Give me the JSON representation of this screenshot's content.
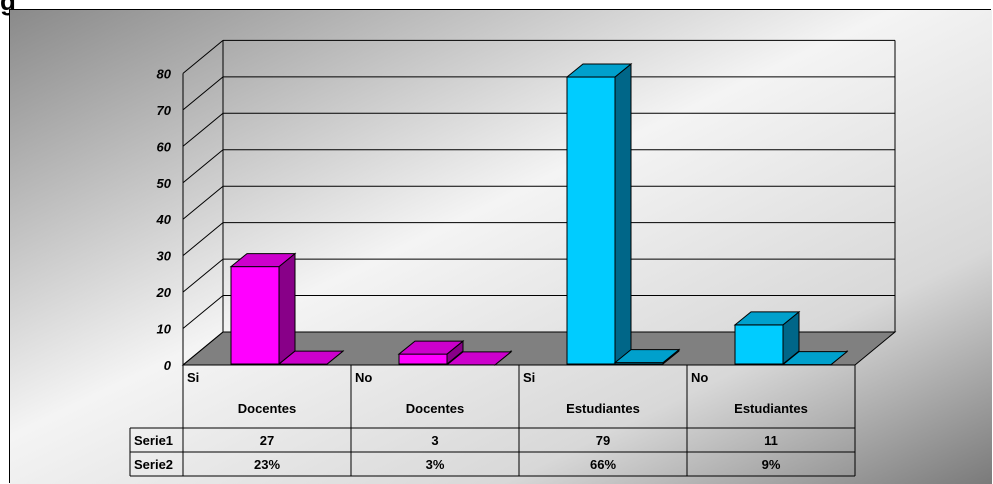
{
  "title_fragment": "g",
  "chart_data": {
    "type": "bar",
    "style": "3d-clustered-column-with-data-table",
    "categories": [
      {
        "line1": "Si",
        "line2": "Docentes"
      },
      {
        "line1": "No",
        "line2": "Docentes"
      },
      {
        "line1": "Si",
        "line2": "Estudiantes"
      },
      {
        "line1": "No",
        "line2": "Estudiantes"
      }
    ],
    "series": [
      {
        "name": "Serie1",
        "values": [
          27,
          3,
          79,
          11
        ],
        "labels": [
          "27",
          "3",
          "79",
          "11"
        ],
        "front_color": "#FF00FF",
        "top_color": "#CC00CC",
        "side_color": "#880088"
      },
      {
        "name": "Serie2",
        "values": [
          0.23,
          0.03,
          0.66,
          0.09
        ],
        "labels": [
          "23%",
          "3%",
          "66%",
          "9%"
        ],
        "front_color": "#FF00FF",
        "top_color": "#CC00CC",
        "side_color": "#880088"
      }
    ],
    "bar_colors": {
      "docentes": {
        "front": "#FF00FF",
        "top": "#CC00CC",
        "side": "#880088"
      },
      "estudiantes": {
        "front": "#00CCFF",
        "top": "#00A0CC",
        "side": "#006688"
      }
    },
    "yticks": [
      "0",
      "10",
      "20",
      "30",
      "40",
      "50",
      "60",
      "70",
      "80"
    ],
    "ylim": [
      0,
      80
    ],
    "grid": true,
    "floor_color": "#808080",
    "legend": "none"
  }
}
